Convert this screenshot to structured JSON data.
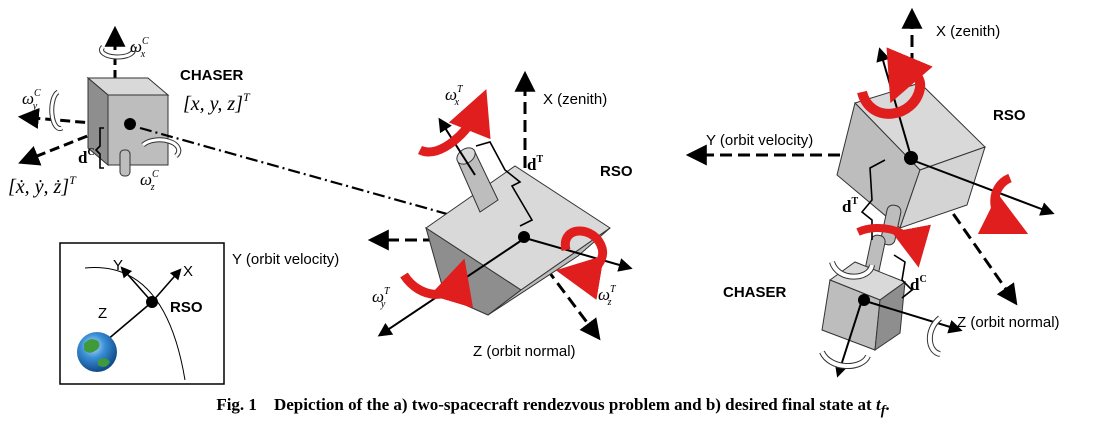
{
  "colors": {
    "rotation_arrow": "#e01e1e",
    "cube_face": "#bdbdbd",
    "cube_top": "#d9d9d9",
    "cube_side": "#8e8e8e"
  },
  "left": {
    "chaser_label": "CHASER",
    "chaser_position": "[x, y, z]",
    "chaser_position_sup": "T",
    "chaser_velocity": "[ẋ, ẏ, ż]",
    "chaser_velocity_sup": "T",
    "omega_x": "ω",
    "omega_x_sup": "C",
    "omega_x_sub": "x",
    "omega_y": "ω",
    "omega_y_sup": "C",
    "omega_y_sub": "y",
    "omega_z": "ω",
    "omega_z_sup": "C",
    "omega_z_sub": "z",
    "d_chaser": "d",
    "d_chaser_sup": "C",
    "rso_label": "RSO",
    "d_target": "d",
    "d_target_sup": "T",
    "omega_tx": "ω",
    "omega_tx_sup": "T",
    "omega_tx_sub": "x",
    "omega_ty": "ω",
    "omega_ty_sup": "T",
    "omega_ty_sub": "y",
    "omega_tz": "ω",
    "omega_tz_sup": "T",
    "omega_tz_sub": "z",
    "x_axis": "X (zenith)",
    "y_axis": "Y (orbit velocity)",
    "z_axis": "Z (orbit normal)"
  },
  "inset": {
    "x_label": "X",
    "y_label": "Y",
    "z_label": "Z",
    "rso_label": "RSO"
  },
  "right": {
    "x_axis": "X (zenith)",
    "y_axis": "Y (orbit velocity)",
    "z_axis": "Z (orbit normal)",
    "rso_label": "RSO",
    "chaser_label": "CHASER",
    "d_target": "d",
    "d_target_sup": "T",
    "d_chaser": "d",
    "d_chaser_sup": "C"
  },
  "caption": {
    "prefix": "Fig. 1",
    "text": "Depiction of the a) two-spacecraft rendezvous problem and b) desired final state at ",
    "var": "t",
    "var_sub": "f",
    "suffix": "."
  }
}
